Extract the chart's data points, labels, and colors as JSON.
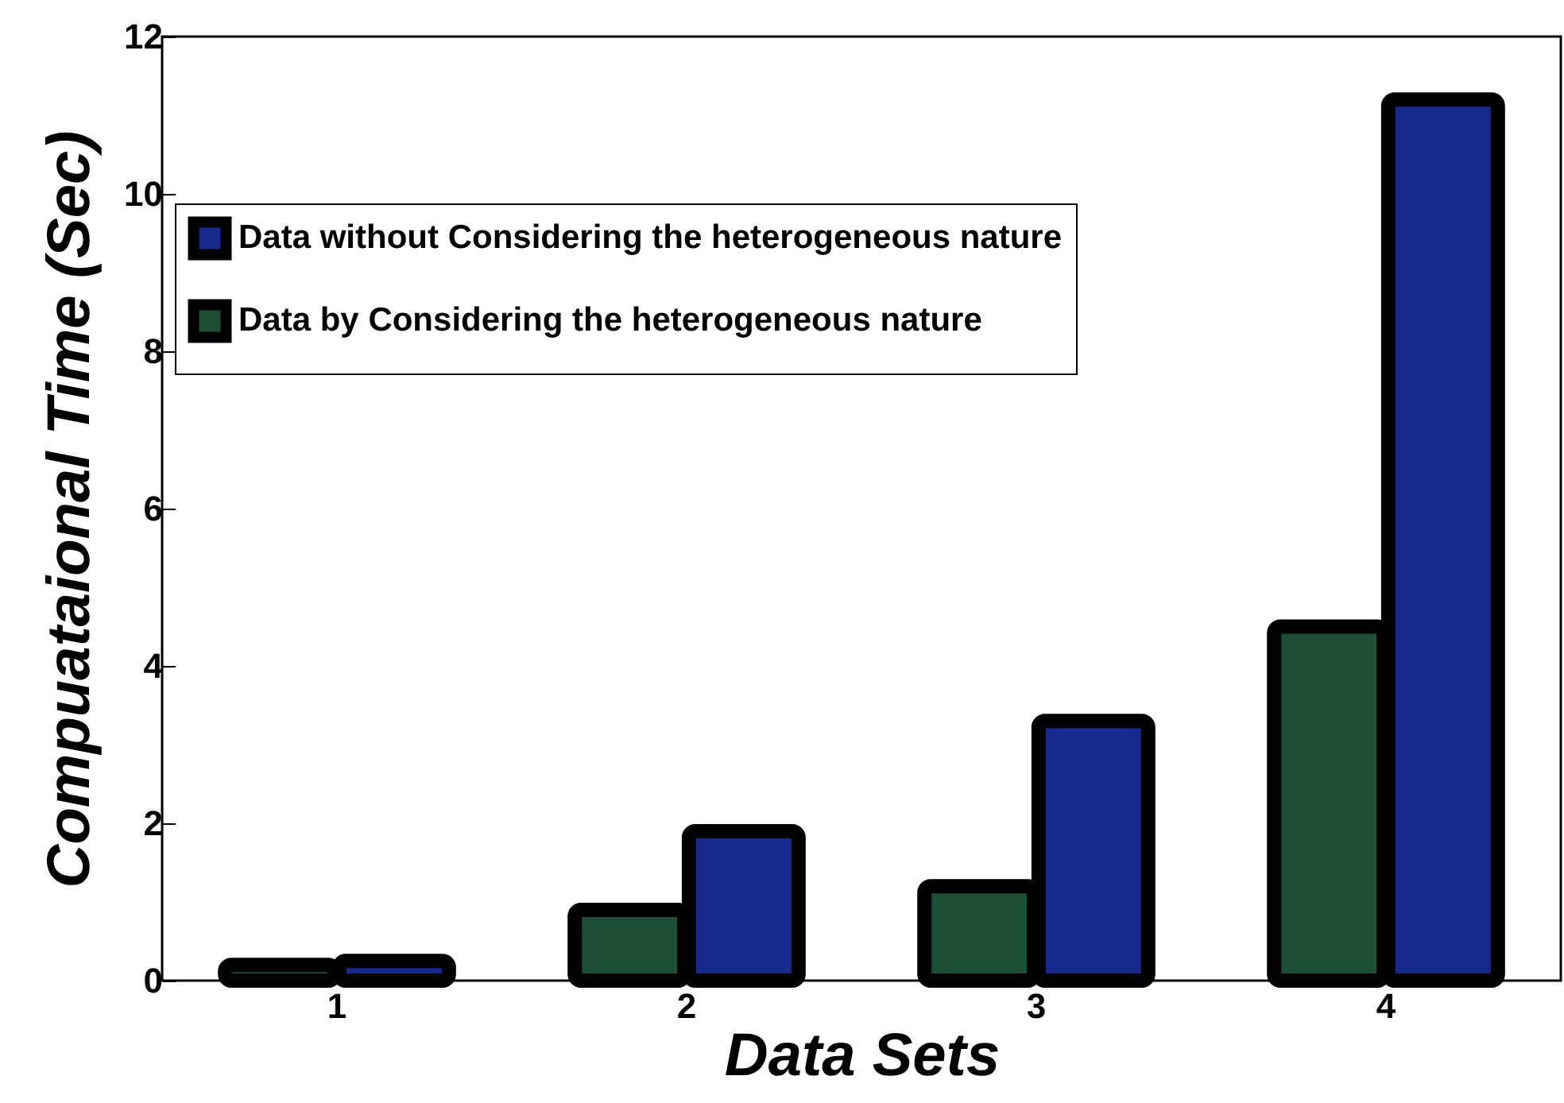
{
  "chart_data": {
    "type": "bar",
    "xlabel": "Data Sets",
    "ylabel": "Compuataional Time (Sec)",
    "categories": [
      "1",
      "2",
      "3",
      "4"
    ],
    "series": [
      {
        "name": "Data without Considering the heterogeneous nature",
        "color": "#182a8c",
        "values": [
          0.25,
          1.9,
          3.3,
          11.2
        ]
      },
      {
        "name": "Data by Considering the heterogeneous nature",
        "color": "#1e4f36",
        "values": [
          0.2,
          0.9,
          1.2,
          4.5
        ]
      }
    ],
    "ylim": [
      0,
      12
    ],
    "yticks": [
      0,
      2,
      4,
      6,
      8,
      10,
      12
    ],
    "grid": false,
    "legend": "top left"
  }
}
